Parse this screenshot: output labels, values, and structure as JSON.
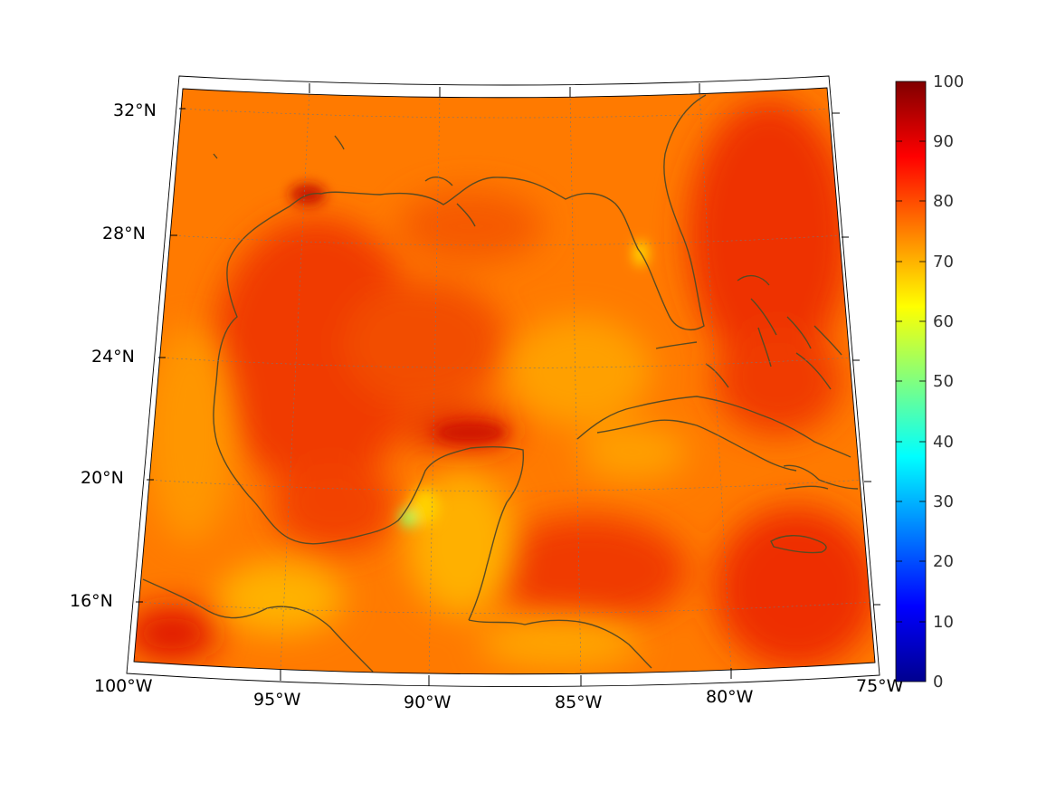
{
  "map": {
    "lat_labels": [
      "32°N",
      "28°N",
      "24°N",
      "20°N",
      "16°N"
    ],
    "lon_labels": [
      "100°W",
      "95°W",
      "90°W",
      "85°W",
      "80°W",
      "75°W"
    ],
    "colorbar": {
      "ticks": [
        "100",
        "90",
        "80",
        "70",
        "60",
        "50",
        "40",
        "30",
        "20",
        "10",
        "0"
      ],
      "colormap": "jet",
      "range": [
        0,
        100
      ]
    },
    "colors": {
      "land_outline": "#5a4a22",
      "dominant_field": "#ff7a00",
      "high_field": "#e81e00",
      "low_field": "#ffd000"
    }
  }
}
